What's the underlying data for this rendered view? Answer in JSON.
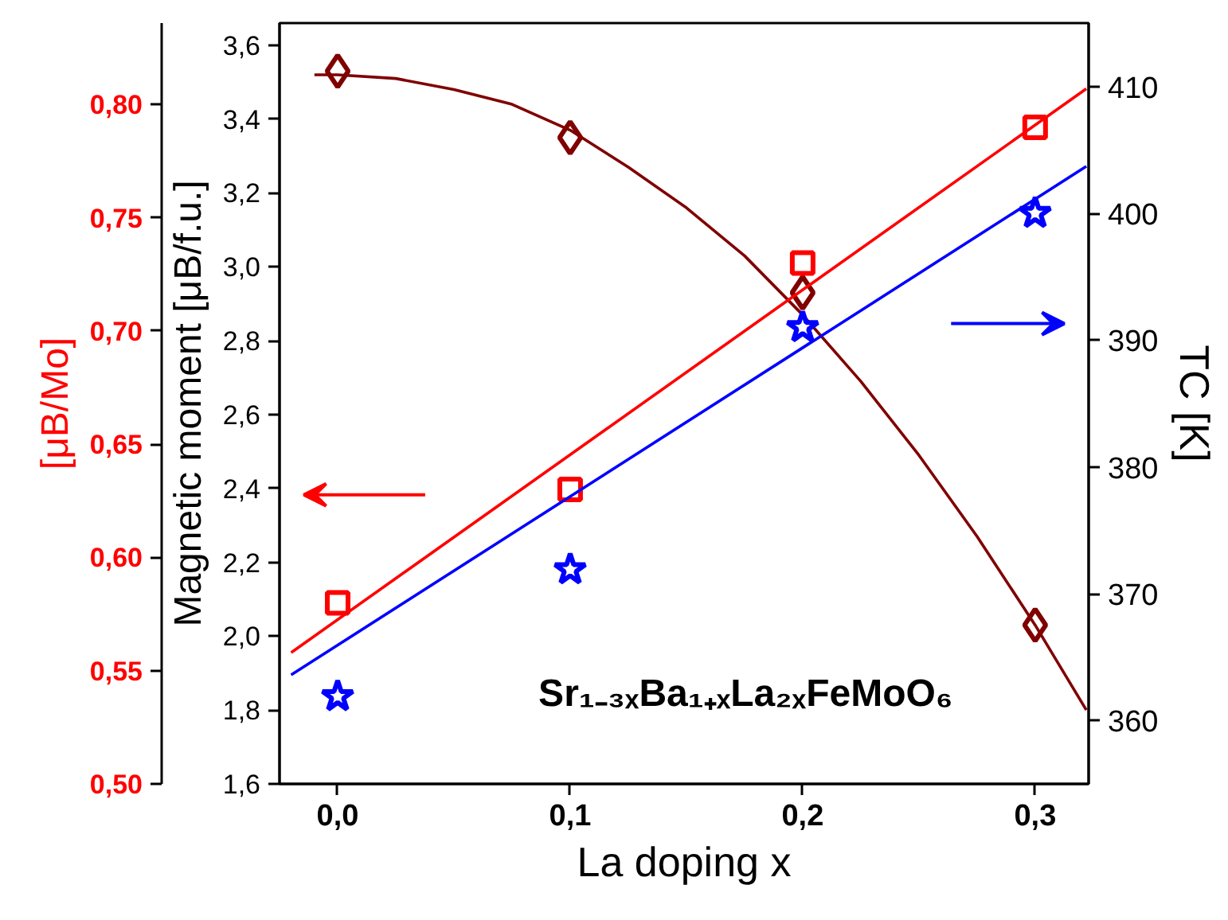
{
  "chart_data": {
    "type": "scatter",
    "xlabel": "La doping x",
    "ylabel": "Magnetic moment [μB/f.u.]",
    "y2label": "[μB/Mo]",
    "y3label": "TC [K]",
    "annotations": [
      "Sr₁₋₃ₓBa₁₊ₓLa₂ₓFeMoO₆"
    ],
    "x": [
      0.0,
      0.1,
      0.2,
      0.3
    ],
    "xlim": [
      -0.025,
      0.323
    ],
    "xticks": [
      {
        "value": 0.0,
        "label": "0,0"
      },
      {
        "value": 0.1,
        "label": "0,1"
      },
      {
        "value": 0.2,
        "label": "0,2"
      },
      {
        "value": 0.3,
        "label": "0,3"
      }
    ],
    "ylim": [
      1.6,
      3.66
    ],
    "yticks": [
      {
        "value": 1.6,
        "label": "1,6"
      },
      {
        "value": 1.8,
        "label": "1,8"
      },
      {
        "value": 2.0,
        "label": "2,0"
      },
      {
        "value": 2.2,
        "label": "2,2"
      },
      {
        "value": 2.4,
        "label": "2,4"
      },
      {
        "value": 2.6,
        "label": "2,6"
      },
      {
        "value": 2.8,
        "label": "2,8"
      },
      {
        "value": 3.0,
        "label": "3,0"
      },
      {
        "value": 3.2,
        "label": "3,2"
      },
      {
        "value": 3.4,
        "label": "3,4"
      },
      {
        "value": 3.6,
        "label": "3,6"
      }
    ],
    "y2lim": [
      0.5,
      0.836
    ],
    "y2ticks": [
      {
        "value": 0.5,
        "label": "0,50"
      },
      {
        "value": 0.55,
        "label": "0,55"
      },
      {
        "value": 0.6,
        "label": "0,60"
      },
      {
        "value": 0.65,
        "label": "0,65"
      },
      {
        "value": 0.7,
        "label": "0,70"
      },
      {
        "value": 0.75,
        "label": "0,75"
      },
      {
        "value": 0.8,
        "label": "0,80"
      }
    ],
    "y3lim": [
      355,
      415
    ],
    "y3ticks": [
      360,
      370,
      380,
      390,
      400,
      410
    ],
    "grid": false,
    "series": [
      {
        "marker": "diamond",
        "color": "#800000",
        "values": [
          3.53,
          3.35,
          2.93,
          2.03
        ]
      },
      {
        "type": "line",
        "color": "#800000",
        "x": [
          -0.01,
          0.0,
          0.025,
          0.05,
          0.075,
          0.1,
          0.125,
          0.15,
          0.175,
          0.2,
          0.225,
          0.25,
          0.275,
          0.3,
          0.322
        ],
        "values": [
          3.52,
          3.52,
          3.51,
          3.48,
          3.44,
          3.37,
          3.27,
          3.16,
          3.03,
          2.87,
          2.69,
          2.49,
          2.27,
          2.03,
          1.8
        ]
      },
      {
        "marker": "square",
        "color": "#ff0000",
        "axis": "y2",
        "values": [
          0.58,
          0.63,
          0.73,
          0.79
        ]
      },
      {
        "type": "line",
        "color": "#ff0000",
        "axis": "y2",
        "x": [
          -0.02,
          0.322
        ],
        "values": [
          0.558,
          0.807
        ]
      },
      {
        "marker": "star",
        "color": "#0000ff",
        "axis": "y3",
        "values": [
          361.9,
          371.9,
          391,
          400
        ]
      },
      {
        "type": "line",
        "color": "#0000ff",
        "axis": "y3",
        "x": [
          -0.02,
          0.322
        ],
        "values": [
          363.6,
          403.7
        ]
      }
    ]
  }
}
